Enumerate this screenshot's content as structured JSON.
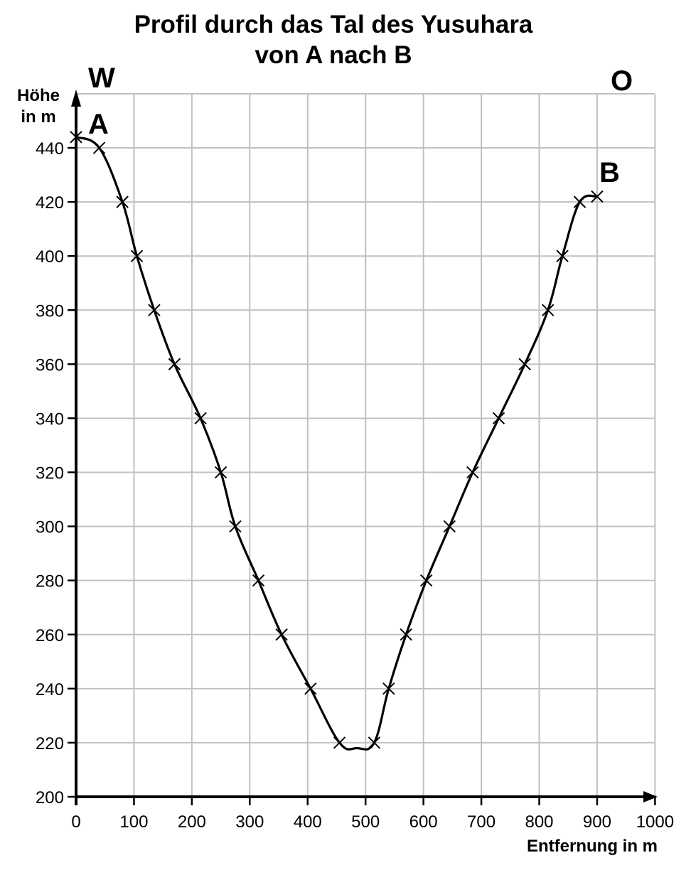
{
  "title_line1": "Profil durch das Tal des Yusuhara",
  "title_line2": "von A nach B",
  "direction_west": "W",
  "direction_east": "O",
  "y_axis_label_line1": "Höhe",
  "y_axis_label_line2": "in m",
  "x_axis_label": "Entfernung in m",
  "point_a_label": "A",
  "point_b_label": "B",
  "colors": {
    "grid": "#c0c0c0",
    "axis": "#000000",
    "line": "#000000"
  },
  "chart_data": {
    "type": "line",
    "title": "Profil durch das Tal des Yusuhara von A nach B",
    "xlabel": "Entfernung in m",
    "ylabel": "Höhe in m",
    "xlim": [
      0,
      1000
    ],
    "ylim": [
      200,
      460
    ],
    "x_ticks": [
      0,
      100,
      200,
      300,
      400,
      500,
      600,
      700,
      800,
      900,
      1000
    ],
    "y_ticks": [
      200,
      220,
      240,
      260,
      280,
      300,
      320,
      340,
      360,
      380,
      400,
      420,
      440
    ],
    "grid": true,
    "annotations": [
      {
        "text": "W",
        "position": "top-left"
      },
      {
        "text": "O",
        "position": "top-right"
      },
      {
        "text": "A",
        "x": 0,
        "y": 444
      },
      {
        "text": "B",
        "x": 900,
        "y": 422
      }
    ],
    "series": [
      {
        "name": "Profil",
        "marker": "x",
        "x": [
          0,
          40,
          80,
          105,
          135,
          170,
          215,
          250,
          275,
          315,
          355,
          405,
          455,
          515,
          540,
          570,
          605,
          645,
          685,
          730,
          775,
          815,
          840,
          870,
          900
        ],
        "y": [
          444,
          440,
          420,
          400,
          380,
          360,
          340,
          320,
          300,
          280,
          260,
          240,
          220,
          220,
          240,
          260,
          280,
          300,
          320,
          340,
          360,
          380,
          400,
          420,
          422
        ]
      }
    ],
    "valley_minimum": {
      "x": 485,
      "y": 218
    }
  }
}
